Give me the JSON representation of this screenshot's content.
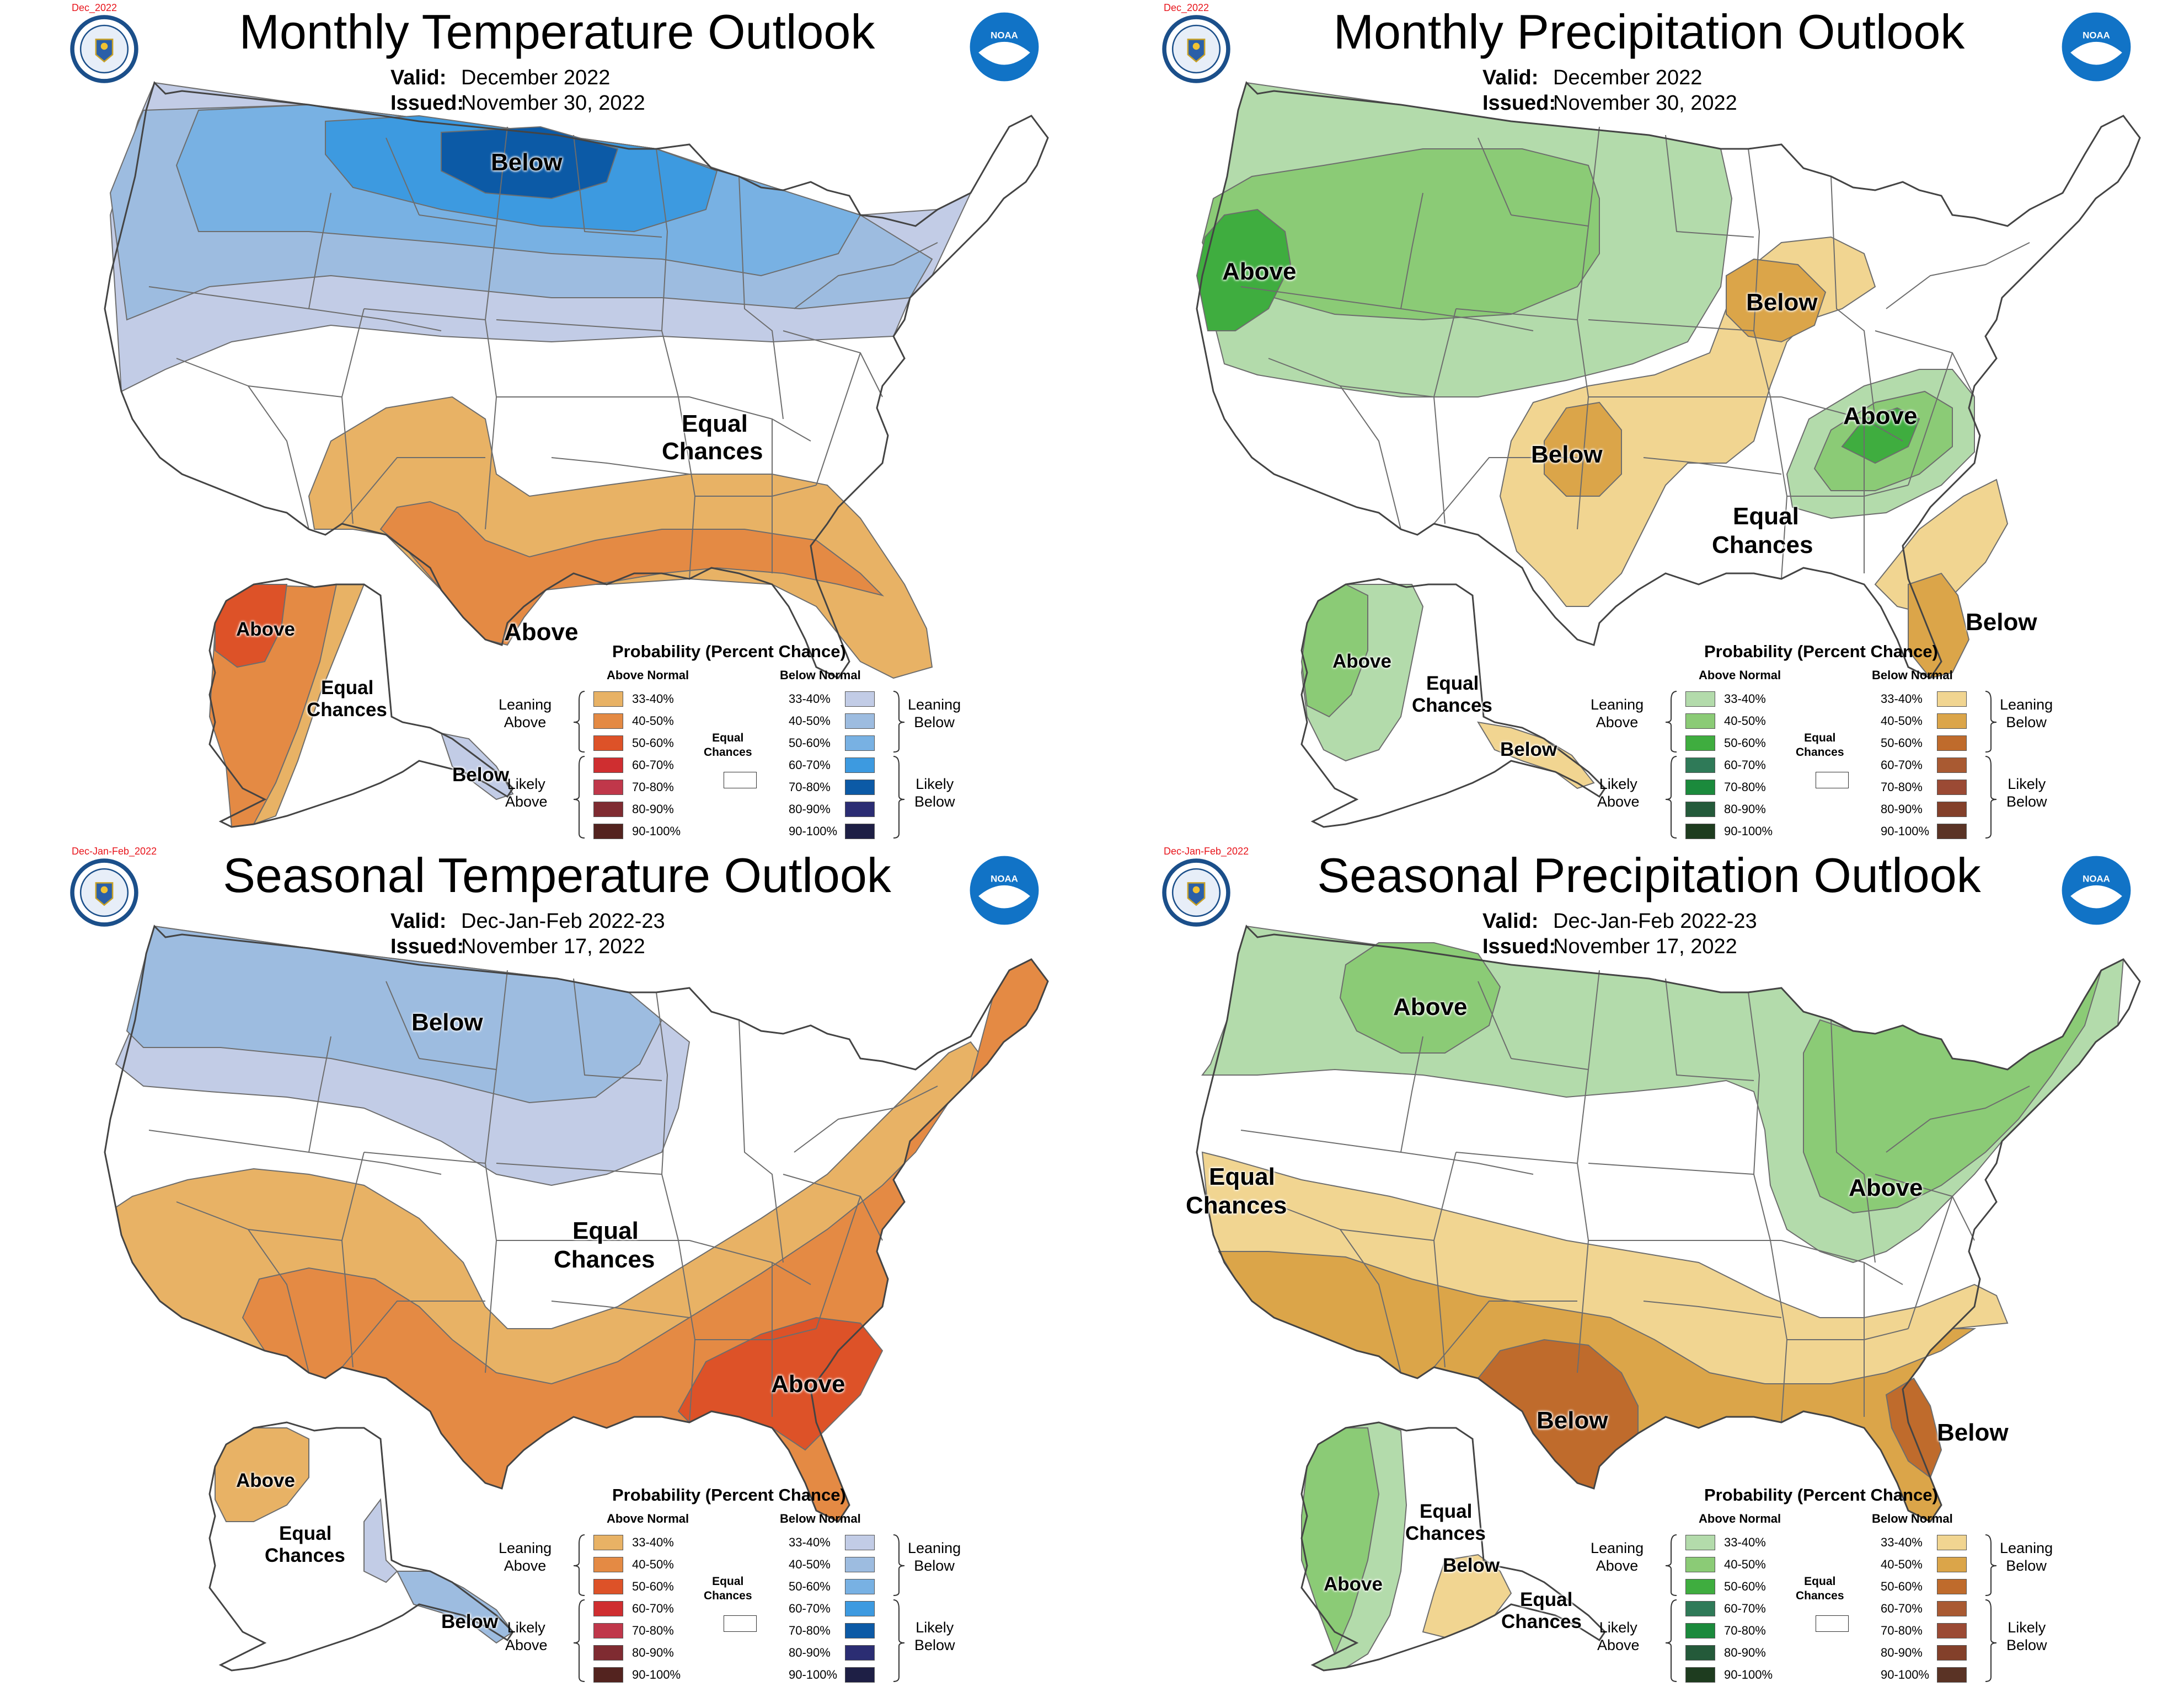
{
  "colors": {
    "leaning_above_temp": "#e8b265",
    "above_40_50_temp": "#e48a44",
    "above_50_60_temp": "#dd5228",
    "above_60_70_temp": "#cf2e30",
    "above_70_80_temp": "#c0374a",
    "above_80_90_temp": "#7f2b31",
    "above_90_100_temp": "#53231f",
    "leaning_below_temp": "#c2cce6",
    "below_40_50_temp": "#9dbce0",
    "below_50_60_temp": "#78b1e3",
    "below_60_70_temp": "#3d9ae0",
    "below_70_80_temp": "#0c5aa6",
    "below_80_90_temp": "#2b2d73",
    "below_90_100_temp": "#1e1f45",
    "leaning_above_prcp": "#b3dbab",
    "above_40_50_prcp": "#8bcb76",
    "above_50_60_prcp": "#3fad3f",
    "above_60_70_prcp": "#2f7a58",
    "above_70_80_prcp": "#1b8a3c",
    "above_80_90_prcp": "#245a3a",
    "above_90_100_prcp": "#1e3c1f",
    "leaning_below_prcp": "#f1d591",
    "below_40_50_prcp": "#dba549",
    "below_50_60_prcp": "#bf6b2c",
    "below_60_70_prcp": "#a95a32",
    "below_70_80_prcp": "#9b4a34",
    "below_80_90_prcp": "#83402a",
    "below_90_100_prcp": "#5a3325",
    "tag_red": "#e8141b",
    "noaa_blue": "#1173c6"
  },
  "panels": [
    {
      "tag": "Dec_2022",
      "title": "Monthly Temperature Outlook",
      "valid_label": "Valid:",
      "valid_value": "December 2022",
      "issued_label": "Issued:",
      "issued_value": "November 30, 2022",
      "noaa_text": "NOAA",
      "labels": [
        "Below",
        "Equal",
        "Chances",
        "Above",
        "Above",
        "Equal",
        "Chances",
        "Below"
      ],
      "legend": {
        "title": "Probability (Percent Chance)",
        "above_head": "Above Normal",
        "below_head": "Below Normal",
        "ranges": [
          "33-40%",
          "40-50%",
          "50-60%",
          "60-70%",
          "70-80%",
          "80-90%",
          "90-100%"
        ],
        "leaning": "Leaning",
        "likely": "Likely",
        "above": "Above",
        "below": "Below",
        "equal": "Equal",
        "chances": "Chances"
      }
    },
    {
      "tag": "Dec_2022",
      "title": "Monthly Precipitation Outlook",
      "valid_label": "Valid:",
      "valid_value": "December 2022",
      "issued_label": "Issued:",
      "issued_value": "November 30, 2022",
      "noaa_text": "NOAA",
      "labels": [
        "Above",
        "Below",
        "Below",
        "Above",
        "Equal",
        "Chances",
        "Below",
        "Above",
        "Equal",
        "Chances",
        "Below"
      ],
      "legend": {
        "title": "Probability (Percent Chance)",
        "above_head": "Above Normal",
        "below_head": "Below Normal",
        "ranges": [
          "33-40%",
          "40-50%",
          "50-60%",
          "60-70%",
          "70-80%",
          "80-90%",
          "90-100%"
        ],
        "leaning": "Leaning",
        "likely": "Likely",
        "above": "Above",
        "below": "Below",
        "equal": "Equal",
        "chances": "Chances"
      }
    },
    {
      "tag": "Dec-Jan-Feb_2022",
      "title": "Seasonal Temperature Outlook",
      "valid_label": "Valid:",
      "valid_value": "Dec-Jan-Feb 2022-23",
      "issued_label": "Issued:",
      "issued_value": "November 17, 2022",
      "noaa_text": "NOAA",
      "labels": [
        "Below",
        "Equal",
        "Chances",
        "Above",
        "Above",
        "Equal",
        "Chances",
        "Below"
      ],
      "legend": {
        "title": "Probability (Percent Chance)",
        "above_head": "Above Normal",
        "below_head": "Below Normal",
        "ranges": [
          "33-40%",
          "40-50%",
          "50-60%",
          "60-70%",
          "70-80%",
          "80-90%",
          "90-100%"
        ],
        "leaning": "Leaning",
        "likely": "Likely",
        "above": "Above",
        "below": "Below",
        "equal": "Equal",
        "chances": "Chances"
      }
    },
    {
      "tag": "Dec-Jan-Feb_2022",
      "title": "Seasonal Precipitation Outlook",
      "valid_label": "Valid:",
      "valid_value": "Dec-Jan-Feb 2022-23",
      "issued_label": "Issued:",
      "issued_value": "November 17, 2022",
      "noaa_text": "NOAA",
      "labels": [
        "Above",
        "Equal",
        "Chances",
        "Above",
        "Below",
        "Below",
        "Equal",
        "Chances",
        "Below",
        "Above",
        "Equal",
        "Chances"
      ],
      "legend": {
        "title": "Probability (Percent Chance)",
        "above_head": "Above Normal",
        "below_head": "Below Normal",
        "ranges": [
          "33-40%",
          "40-50%",
          "50-60%",
          "60-70%",
          "70-80%",
          "80-90%",
          "90-100%"
        ],
        "leaning": "Leaning",
        "likely": "Likely",
        "above": "Above",
        "below": "Below",
        "equal": "Equal",
        "chances": "Chances"
      }
    }
  ]
}
